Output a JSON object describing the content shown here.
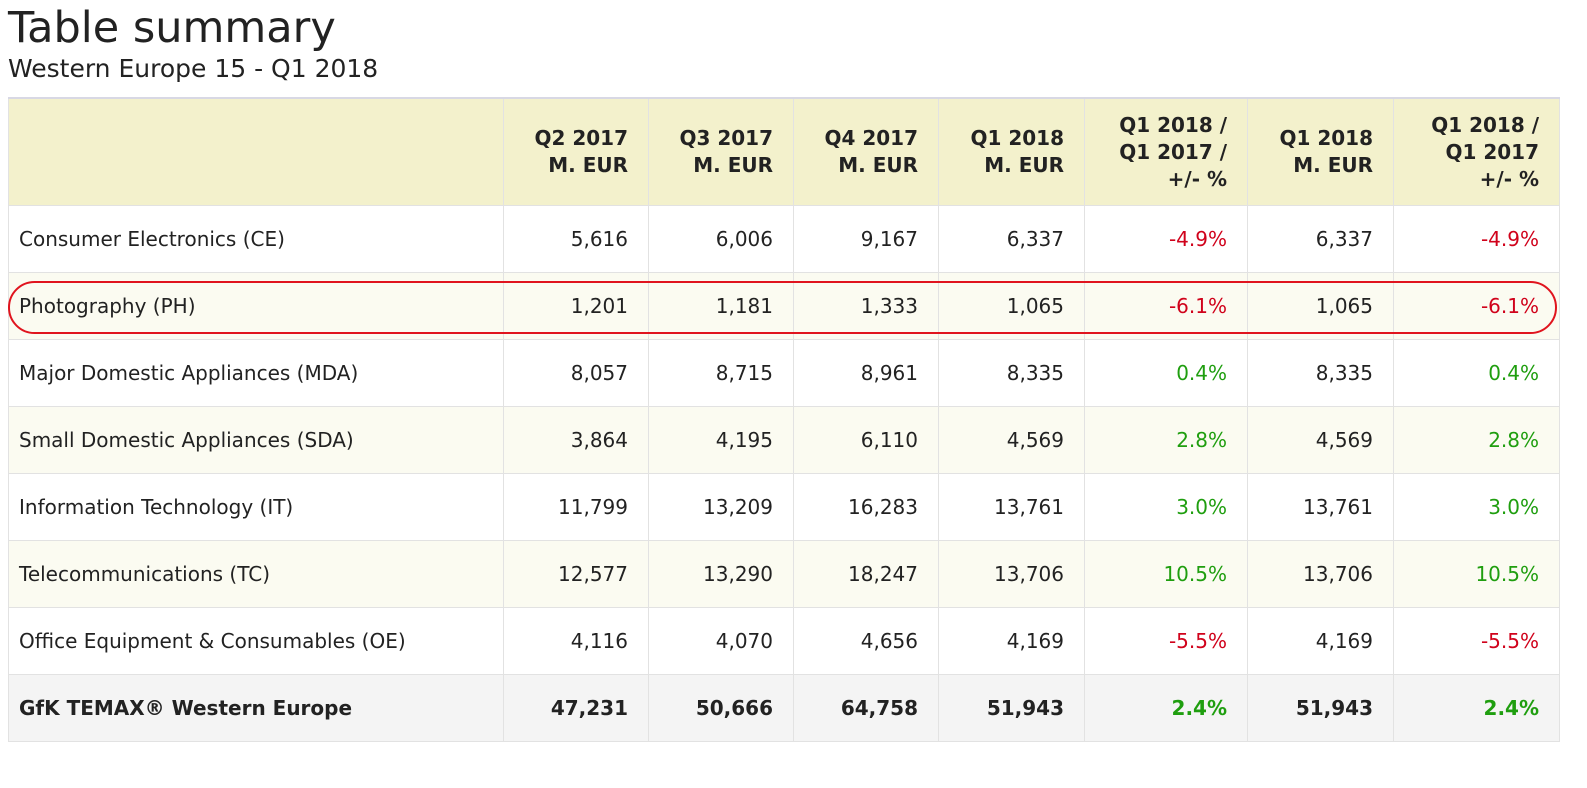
{
  "title": "Table summary",
  "subtitle": "Western Europe 15 - Q1 2018",
  "colors": {
    "header_bg": "#f3f1cc",
    "negative": "#d0021b",
    "positive": "#1f9e0f",
    "highlight": "#e0141e"
  },
  "columns": [
    "",
    "Q2 2017\nM. EUR",
    "Q3 2017\nM. EUR",
    "Q4 2017\nM. EUR",
    "Q1 2018\nM. EUR",
    "Q1 2018 /\nQ1 2017 /\n+/- %",
    "Q1 2018\nM. EUR",
    "Q1 2018 /\nQ1 2017\n+/- %"
  ],
  "rows": [
    {
      "label": "Consumer Electronics (CE)",
      "cells": [
        "5,616",
        "6,006",
        "9,167",
        "6,337",
        "-4.9%",
        "6,337",
        "-4.9%"
      ],
      "trend": "neg"
    },
    {
      "label": "Photography (PH)",
      "cells": [
        "1,201",
        "1,181",
        "1,333",
        "1,065",
        "-6.1%",
        "1,065",
        "-6.1%"
      ],
      "trend": "neg"
    },
    {
      "label": "Major Domestic Appliances (MDA)",
      "cells": [
        "8,057",
        "8,715",
        "8,961",
        "8,335",
        "0.4%",
        "8,335",
        "0.4%"
      ],
      "trend": "pos"
    },
    {
      "label": "Small Domestic Appliances (SDA)",
      "cells": [
        "3,864",
        "4,195",
        "6,110",
        "4,569",
        "2.8%",
        "4,569",
        "2.8%"
      ],
      "trend": "pos"
    },
    {
      "label": "Information Technology (IT)",
      "cells": [
        "11,799",
        "13,209",
        "16,283",
        "13,761",
        "3.0%",
        "13,761",
        "3.0%"
      ],
      "trend": "pos"
    },
    {
      "label": "Telecommunications (TC)",
      "cells": [
        "12,577",
        "13,290",
        "18,247",
        "13,706",
        "10.5%",
        "13,706",
        "10.5%"
      ],
      "trend": "pos"
    },
    {
      "label": "Office Equipment & Consumables (OE)",
      "cells": [
        "4,116",
        "4,070",
        "4,656",
        "4,169",
        "-5.5%",
        "4,169",
        "-5.5%"
      ],
      "trend": "neg"
    }
  ],
  "total": {
    "label": "GfK TEMAX® Western Europe",
    "cells": [
      "47,231",
      "50,666",
      "64,758",
      "51,943",
      "2.4%",
      "51,943",
      "2.4%"
    ],
    "trend": "pos"
  }
}
